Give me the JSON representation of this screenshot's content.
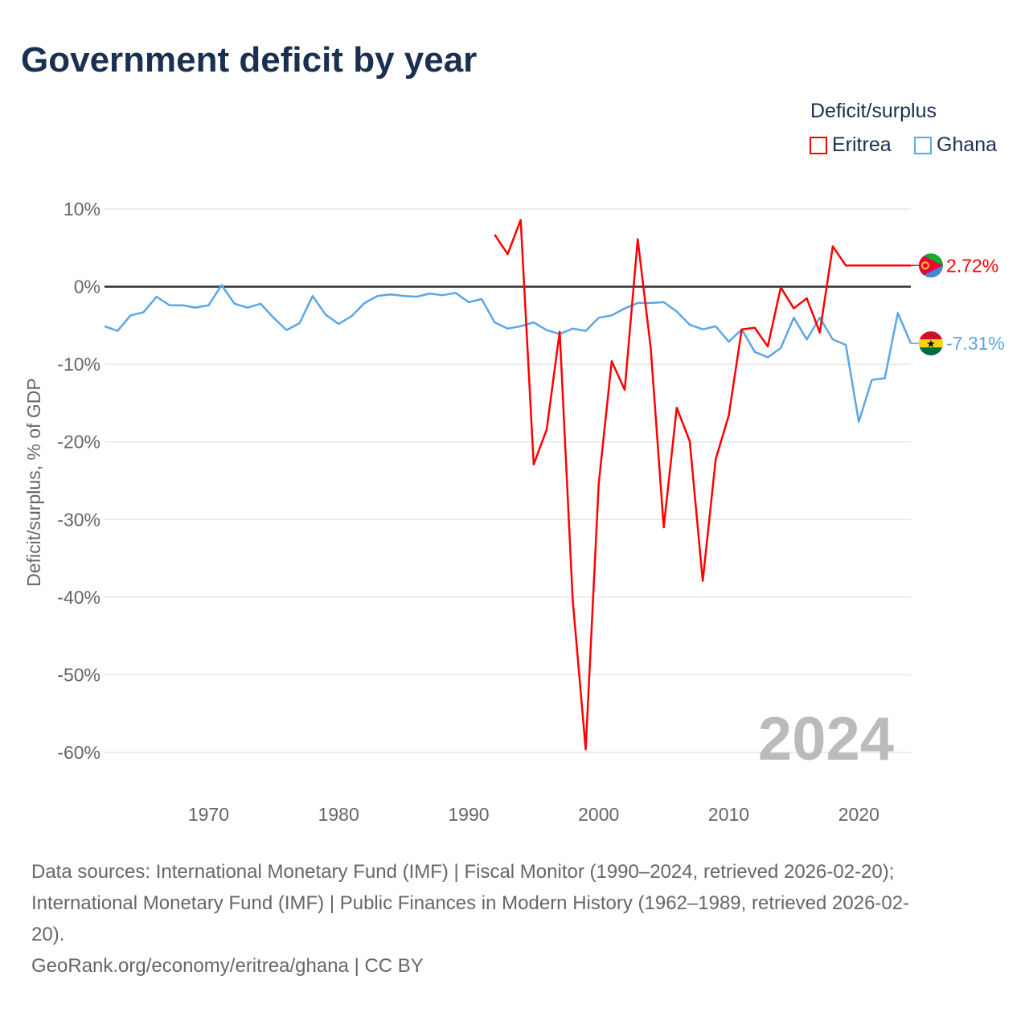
{
  "title": "Government deficit by year",
  "footer": {
    "sources_1": "Data sources: International Monetary Fund (IMF) | Fiscal Monitor (1990–2024, retrieved 2026-02-20);",
    "sources_2": "International Monetary Fund (IMF) | Public Finances in Modern History (1962–1989, retrieved 2026-02-",
    "sources_3": "20).",
    "credit": "GeoRank.org/economy/eritrea/ghana | CC BY"
  },
  "chart_data": {
    "type": "line",
    "title": "Government deficit by year",
    "ylabel": "Deficit/surplus, % of GDP",
    "xlabel": "",
    "ylim": [
      -60,
      10
    ],
    "xlim": [
      1962,
      2024
    ],
    "yticks": [
      10,
      0,
      -10,
      -20,
      -30,
      -40,
      -50,
      -60
    ],
    "ytick_labels": [
      "10%",
      "0%",
      "-10%",
      "-20%",
      "-30%",
      "-40%",
      "-50%",
      "-60%"
    ],
    "xticks": [
      1970,
      1980,
      1990,
      2000,
      2010,
      2020
    ],
    "xtick_labels": [
      "1970",
      "1980",
      "1990",
      "2000",
      "2010",
      "2020"
    ],
    "grid": true,
    "legend_title": "Deficit/surplus",
    "legend_position": "top-right",
    "year_watermark": "2024",
    "series": [
      {
        "name": "Eritrea",
        "color": "#ff0000",
        "start": 1992,
        "end_label": "2.72%",
        "flag": "eritrea-flag",
        "values": [
          6.7,
          4.2,
          8.6,
          -22.9,
          -18.4,
          -5.8,
          -40.3,
          -59.6,
          -25.4,
          -9.6,
          -13.3,
          6.1,
          -7.9,
          -31.0,
          -15.6,
          -19.9,
          -37.9,
          -22.2,
          -16.6,
          -5.5,
          -5.3,
          -7.7,
          -0.1,
          -2.8,
          -1.5,
          -5.9,
          5.2,
          2.72,
          2.72,
          2.72,
          2.72,
          2.72,
          2.72
        ]
      },
      {
        "name": "Ghana",
        "color": "#5aa6e8",
        "start": 1962,
        "end_label": "-7.31%",
        "flag": "ghana-flag",
        "values": [
          -5.1,
          -5.7,
          -3.7,
          -3.3,
          -1.3,
          -2.4,
          -2.4,
          -2.7,
          -2.4,
          0.2,
          -2.2,
          -2.7,
          -2.2,
          -4.0,
          -5.6,
          -4.7,
          -1.2,
          -3.6,
          -4.8,
          -3.8,
          -2.1,
          -1.2,
          -1.0,
          -1.2,
          -1.3,
          -0.9,
          -1.1,
          -0.8,
          -2.0,
          -1.6,
          -4.6,
          -5.4,
          -5.1,
          -4.6,
          -5.6,
          -6.1,
          -5.4,
          -5.7,
          -4.0,
          -3.7,
          -2.8,
          -2.1,
          -2.1,
          -2.0,
          -3.2,
          -4.9,
          -5.5,
          -5.1,
          -7.1,
          -5.5,
          -8.4,
          -9.1,
          -7.9,
          -4.0,
          -6.8,
          -4.0,
          -6.8,
          -7.5,
          -17.4,
          -12.0,
          -11.8,
          -3.4,
          -7.31
        ]
      }
    ]
  }
}
